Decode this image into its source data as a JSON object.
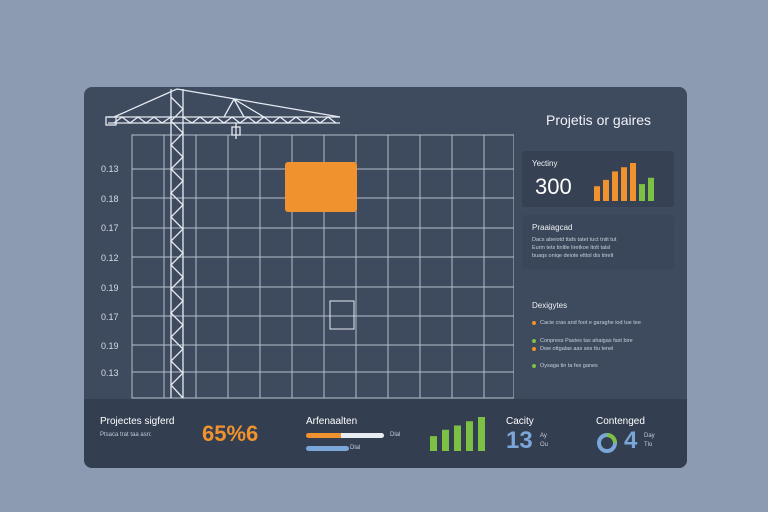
{
  "title": "Projetis or gaires",
  "y_axis_labels": [
    "0.13",
    "0.18",
    "0.17",
    "0.12",
    "0.19",
    "0.17",
    "0.19",
    "0.13"
  ],
  "capacity_card": {
    "label": "Yectiny",
    "value": "300",
    "bar_values": [
      14,
      20,
      28,
      32,
      36,
      16,
      22
    ],
    "bar_colors": [
      "#f0922d",
      "#f0922d",
      "#f0922d",
      "#f0922d",
      "#f0922d",
      "#7cc144",
      "#7cc144"
    ]
  },
  "progress_card": {
    "label": "Praaiagcad",
    "lines": [
      "Dacs abeiotd ttafs tatet  tuct  tniit  tut",
      "Eurin tets tinltle liretkoe ltolt  talsl",
      "buaqs oniqe deiote elttol dis tiirelt"
    ]
  },
  "designs": {
    "label": "Dexigytes",
    "items": [
      {
        "text": "Cacie cras and foot e garaghe iod tue tee",
        "color": "#f0922d"
      },
      {
        "text": "Conpress Pastes tas ahaigas fast bire",
        "color": "#7cc144"
      },
      {
        "text": "Dwe ottgalas aas ses ttu tenel",
        "color": "#f0922d"
      },
      {
        "text": "Oysaga  tin ta fes ganes",
        "color": "#7cc144"
      }
    ]
  },
  "bottom": {
    "projects": {
      "label": "Projectes sigferd",
      "sub": "Ptsaca trat  taa asn:",
      "value": "65%6"
    },
    "arrangement": {
      "label": "Arfenaalten",
      "bar1_note": "Dlal",
      "bar2_note": "Dlal",
      "bar1_fraction": 1.0,
      "bar2_fraction": 0.55
    },
    "chart_bars": [
      14,
      20,
      24,
      28,
      32
    ],
    "cacity": {
      "label": "Cacity",
      "value": "13",
      "suffix_top": "Ay",
      "suffix_bottom": "Ou"
    },
    "contenged": {
      "label": "Contenged",
      "value": "4",
      "suffix_top": "Day",
      "suffix_bottom": "Tlo"
    }
  },
  "colors": {
    "orange": "#f0922d",
    "green": "#7cc144",
    "blue": "#7aa6d8"
  }
}
